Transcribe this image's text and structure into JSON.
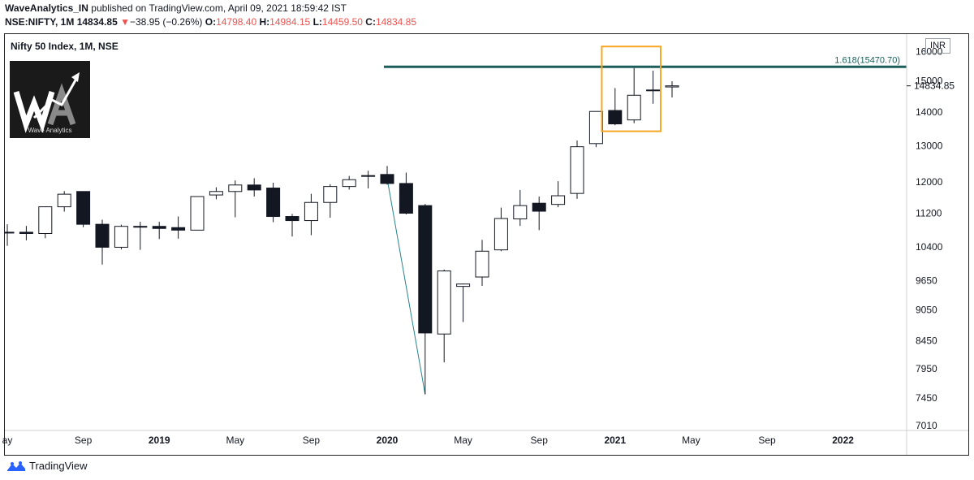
{
  "header": {
    "publisher": "WaveAnalytics_IN",
    "published_text": " published on TradingView.com, April 09, 2021 18:59:42 IST",
    "symbol": "NSE:NIFTY, 1M",
    "last": "14834.85",
    "change_arrow": "▼",
    "change": "−38.95 (−0.26%)",
    "o_label": "O:",
    "o_value": "14798.40",
    "h_label": "H:",
    "h_value": "14984.15",
    "l_label": "L:",
    "l_value": "14459.50",
    "c_label": "C:",
    "c_value": "14834.85"
  },
  "legend_title": "Nifty 50 Index, 1M, NSE",
  "logo_text": "Wave Analytics",
  "currency_label": "INR",
  "footer": {
    "brand": "TradingView"
  },
  "colors": {
    "up": "#ffffff",
    "down": "#131722",
    "fib_line": "#1b5e5a",
    "highlight_box": "#f5a623",
    "wave_line": "#26838a",
    "price_tag": "#ef5350"
  },
  "chart_data": {
    "type": "candlestick",
    "title": "Nifty 50 Index, 1M, NSE",
    "price_scale": "log",
    "y_ticks": [
      7010,
      7450,
      7950,
      8450,
      9050,
      9650,
      10400,
      11200,
      12000,
      13000,
      14000,
      15000,
      16000
    ],
    "x_ticks": [
      {
        "label": "ay",
        "i": 0,
        "bold": false
      },
      {
        "label": "Sep",
        "i": 4,
        "bold": false
      },
      {
        "label": "2019",
        "i": 8,
        "bold": true
      },
      {
        "label": "May",
        "i": 12,
        "bold": false
      },
      {
        "label": "Sep",
        "i": 16,
        "bold": false
      },
      {
        "label": "2020",
        "i": 20,
        "bold": true
      },
      {
        "label": "May",
        "i": 24,
        "bold": false
      },
      {
        "label": "Sep",
        "i": 28,
        "bold": false
      },
      {
        "label": "2021",
        "i": 32,
        "bold": true
      },
      {
        "label": "May",
        "i": 36,
        "bold": false
      },
      {
        "label": "Sep",
        "i": 40,
        "bold": false
      },
      {
        "label": "2022",
        "i": 44,
        "bold": true
      }
    ],
    "candles": [
      {
        "t": "2018-05",
        "o": 10740,
        "h": 10930,
        "l": 10420,
        "c": 10740
      },
      {
        "t": "2018-06",
        "o": 10740,
        "h": 10890,
        "l": 10550,
        "c": 10710
      },
      {
        "t": "2018-07",
        "o": 10710,
        "h": 11370,
        "l": 10600,
        "c": 11360
      },
      {
        "t": "2018-08",
        "o": 11360,
        "h": 11760,
        "l": 11240,
        "c": 11680
      },
      {
        "t": "2018-09",
        "o": 11750,
        "h": 11750,
        "l": 10860,
        "c": 10930
      },
      {
        "t": "2018-10",
        "o": 10930,
        "h": 11040,
        "l": 10000,
        "c": 10390
      },
      {
        "t": "2018-11",
        "o": 10390,
        "h": 10920,
        "l": 10340,
        "c": 10880
      },
      {
        "t": "2018-12",
        "o": 10880,
        "h": 10990,
        "l": 10330,
        "c": 10860
      },
      {
        "t": "2019-01",
        "o": 10880,
        "h": 10990,
        "l": 10580,
        "c": 10830
      },
      {
        "t": "2019-02",
        "o": 10850,
        "h": 11120,
        "l": 10590,
        "c": 10790
      },
      {
        "t": "2019-03",
        "o": 10790,
        "h": 11630,
        "l": 10820,
        "c": 11620
      },
      {
        "t": "2019-04",
        "o": 11660,
        "h": 11860,
        "l": 11550,
        "c": 11750
      },
      {
        "t": "2019-05",
        "o": 11750,
        "h": 12040,
        "l": 11100,
        "c": 11920
      },
      {
        "t": "2019-06",
        "o": 11920,
        "h": 12100,
        "l": 11620,
        "c": 11790
      },
      {
        "t": "2019-07",
        "o": 11840,
        "h": 11980,
        "l": 10980,
        "c": 11120
      },
      {
        "t": "2019-08",
        "o": 11120,
        "h": 11180,
        "l": 10640,
        "c": 11020
      },
      {
        "t": "2019-09",
        "o": 11020,
        "h": 11690,
        "l": 10670,
        "c": 11470
      },
      {
        "t": "2019-10",
        "o": 11470,
        "h": 11940,
        "l": 11090,
        "c": 11880
      },
      {
        "t": "2019-11",
        "o": 11880,
        "h": 12160,
        "l": 11800,
        "c": 12060
      },
      {
        "t": "2019-12",
        "o": 12160,
        "h": 12300,
        "l": 11830,
        "c": 12170
      },
      {
        "t": "2020-01",
        "o": 12200,
        "h": 12430,
        "l": 11930,
        "c": 11960
      },
      {
        "t": "2020-02",
        "o": 11960,
        "h": 12250,
        "l": 11170,
        "c": 11200
      },
      {
        "t": "2020-03",
        "o": 11390,
        "h": 11430,
        "l": 7510,
        "c": 8600
      },
      {
        "t": "2020-04",
        "o": 8580,
        "h": 9890,
        "l": 8060,
        "c": 9860
      },
      {
        "t": "2020-05",
        "o": 9530,
        "h": 9590,
        "l": 8810,
        "c": 9580
      },
      {
        "t": "2020-06",
        "o": 9730,
        "h": 10560,
        "l": 9540,
        "c": 10300
      },
      {
        "t": "2020-07",
        "o": 10330,
        "h": 11340,
        "l": 10300,
        "c": 11070
      },
      {
        "t": "2020-08",
        "o": 11060,
        "h": 11790,
        "l": 10890,
        "c": 11390
      },
      {
        "t": "2020-09",
        "o": 11450,
        "h": 11620,
        "l": 10790,
        "c": 11250
      },
      {
        "t": "2020-10",
        "o": 11420,
        "h": 12020,
        "l": 11350,
        "c": 11640
      },
      {
        "t": "2020-11",
        "o": 11700,
        "h": 13150,
        "l": 11560,
        "c": 12970
      },
      {
        "t": "2020-12",
        "o": 13060,
        "h": 14010,
        "l": 12960,
        "c": 14020
      },
      {
        "t": "2021-01",
        "o": 14050,
        "h": 14760,
        "l": 13600,
        "c": 13640
      },
      {
        "t": "2021-02",
        "o": 13760,
        "h": 15430,
        "l": 13660,
        "c": 14530
      },
      {
        "t": "2021-03",
        "o": 14700,
        "h": 15340,
        "l": 14260,
        "c": 14690
      },
      {
        "t": "2021-04",
        "o": 14798.4,
        "h": 14984.15,
        "l": 14459.5,
        "c": 14834.85
      }
    ],
    "fib_level": {
      "label": "1.618(15470.70)",
      "value": 15470.7
    },
    "last_price_label": "14834.85",
    "wave_line": [
      {
        "i": 20,
        "v": 12090
      },
      {
        "i": 22,
        "v": 7510
      }
    ],
    "highlight": {
      "i_from": 31.3,
      "i_to": 34.4,
      "v_from": 13420,
      "v_to": 16180
    }
  }
}
